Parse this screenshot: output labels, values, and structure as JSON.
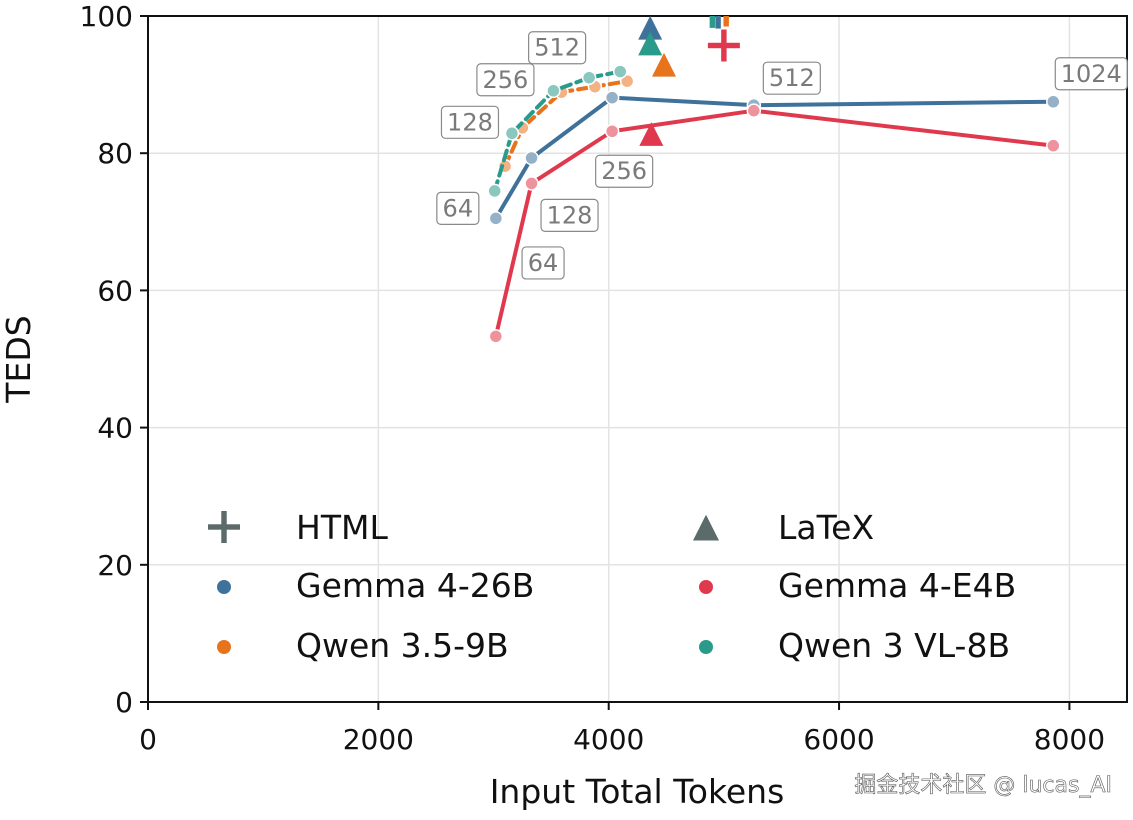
{
  "chart_data": {
    "type": "line",
    "xlabel": "Input Total Tokens",
    "ylabel": "TEDS",
    "xlim": [
      0,
      8500
    ],
    "ylim": [
      0,
      100
    ],
    "x_ticks": [
      0,
      2000,
      4000,
      6000,
      8000
    ],
    "y_ticks": [
      0,
      20,
      40,
      60,
      80,
      100
    ],
    "grid": true,
    "legend_position": "lower-center, two columns",
    "colors": {
      "Gemma 4-26B": "#3f729b",
      "Gemma 4-E4B": "#e0394e",
      "Qwen 3.5-9B": "#e8731d",
      "Qwen 3 VL-8B": "#2a9a8a",
      "legend_marker": "#5a6b6a"
    },
    "series": [
      {
        "name": "Gemma 4-26B",
        "style": "solid",
        "points": [
          {
            "x": 3020,
            "y": 70.5,
            "label": "64"
          },
          {
            "x": 3330,
            "y": 79.3,
            "label": ""
          },
          {
            "x": 4030,
            "y": 88.1,
            "label": ""
          },
          {
            "x": 5260,
            "y": 87.0,
            "label": "512"
          },
          {
            "x": 7860,
            "y": 87.5,
            "label": "1024"
          }
        ]
      },
      {
        "name": "Gemma 4-E4B",
        "style": "solid",
        "points": [
          {
            "x": 3020,
            "y": 53.3,
            "label": ""
          },
          {
            "x": 3330,
            "y": 75.6,
            "label": "128"
          },
          {
            "x": 4030,
            "y": 83.2,
            "label": "256"
          },
          {
            "x": 5260,
            "y": 86.2,
            "label": ""
          },
          {
            "x": 7860,
            "y": 81.1,
            "label": ""
          }
        ]
      },
      {
        "name": "Qwen 3.5-9B",
        "style": "dashed",
        "points": [
          {
            "x": 3100,
            "y": 78.1,
            "label": ""
          },
          {
            "x": 3250,
            "y": 83.7,
            "label": ""
          },
          {
            "x": 3590,
            "y": 88.9,
            "label": ""
          },
          {
            "x": 3880,
            "y": 89.7,
            "label": ""
          },
          {
            "x": 4160,
            "y": 90.5,
            "label": ""
          }
        ]
      },
      {
        "name": "Qwen 3 VL-8B",
        "style": "dashed",
        "points": [
          {
            "x": 3010,
            "y": 74.5,
            "label": ""
          },
          {
            "x": 3160,
            "y": 82.9,
            "label": "128"
          },
          {
            "x": 3520,
            "y": 89.1,
            "label": "256"
          },
          {
            "x": 3830,
            "y": 91.0,
            "label": "512"
          },
          {
            "x": 4100,
            "y": 91.9,
            "label": ""
          }
        ]
      }
    ],
    "extra_labels": [
      {
        "x": 3430,
        "y": 64,
        "label": "64"
      }
    ],
    "html_markers": [
      {
        "series": "Gemma 4-E4B",
        "x": 5000,
        "y": 95.7
      },
      {
        "series": "Gemma 4-26B",
        "x": 4950,
        "y": 100.5
      },
      {
        "series": "Qwen 3 VL-8B",
        "x": 4900,
        "y": 100.6
      },
      {
        "series": "Qwen 3.5-9B",
        "x": 5020,
        "y": 100.8
      }
    ],
    "latex_markers": [
      {
        "series": "Gemma 4-26B",
        "x": 4360,
        "y": 98.1
      },
      {
        "series": "Qwen 3 VL-8B",
        "x": 4360,
        "y": 95.8
      },
      {
        "series": "Qwen 3.5-9B",
        "x": 4480,
        "y": 92.7
      },
      {
        "series": "Gemma 4-E4B",
        "x": 4370,
        "y": 82.6
      }
    ],
    "legend": [
      {
        "label": "HTML",
        "marker": "plus",
        "color_key": "legend_marker"
      },
      {
        "label": "LaTeX",
        "marker": "triangle",
        "color_key": "legend_marker"
      },
      {
        "label": "Gemma 4-26B",
        "marker": "dot",
        "color_key": "Gemma 4-26B"
      },
      {
        "label": "Gemma 4-E4B",
        "marker": "dot",
        "color_key": "Gemma 4-E4B"
      },
      {
        "label": "Qwen 3.5-9B",
        "marker": "dot",
        "color_key": "Qwen 3.5-9B"
      },
      {
        "label": "Qwen 3 VL-8B",
        "marker": "dot",
        "color_key": "Qwen 3 VL-8B"
      }
    ]
  },
  "watermark": "掘金技术社区 @ lucas_AI"
}
